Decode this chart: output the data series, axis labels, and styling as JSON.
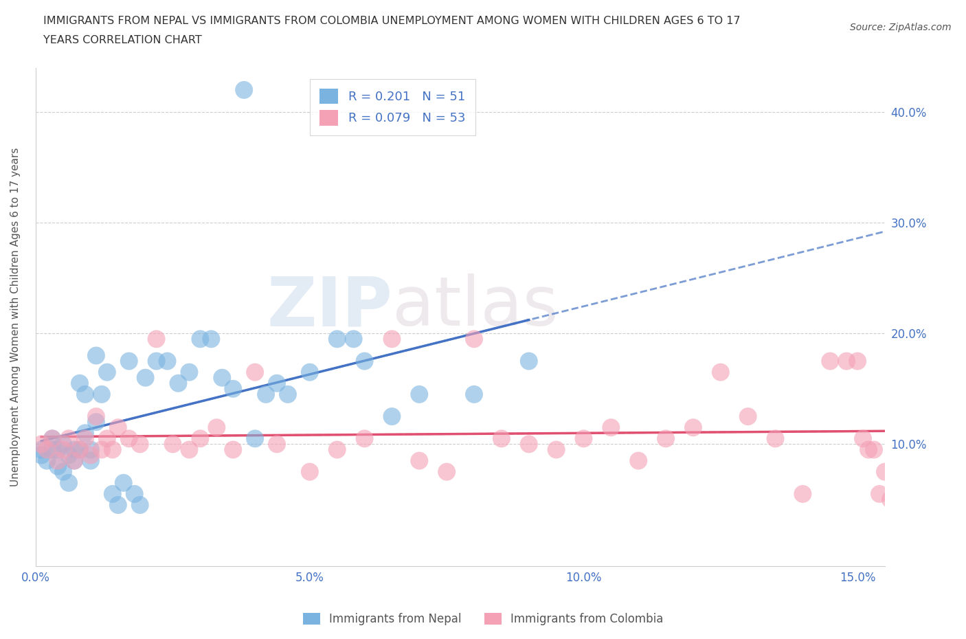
{
  "title_line1": "IMMIGRANTS FROM NEPAL VS IMMIGRANTS FROM COLOMBIA UNEMPLOYMENT AMONG WOMEN WITH CHILDREN AGES 6 TO 17",
  "title_line2": "YEARS CORRELATION CHART",
  "source_text": "Source: ZipAtlas.com",
  "ylabel": "Unemployment Among Women with Children Ages 6 to 17 years",
  "xlim": [
    0.0,
    0.155
  ],
  "ylim": [
    -0.01,
    0.44
  ],
  "xticks": [
    0.0,
    0.05,
    0.1,
    0.15
  ],
  "xticklabels": [
    "0.0%",
    "5.0%",
    "10.0%",
    "15.0%"
  ],
  "yticks": [
    0.1,
    0.2,
    0.3,
    0.4
  ],
  "yticklabels": [
    "10.0%",
    "20.0%",
    "30.0%",
    "40.0%"
  ],
  "nepal_color": "#7ab3e0",
  "colombia_color": "#f4a0b5",
  "nepal_R": 0.201,
  "nepal_N": 51,
  "colombia_R": 0.079,
  "colombia_N": 53,
  "legend_label_nepal": "Immigrants from Nepal",
  "legend_label_colombia": "Immigrants from Colombia",
  "watermark_zip": "ZIP",
  "watermark_atlas": "atlas",
  "nepal_x": [
    0.001,
    0.001,
    0.002,
    0.003,
    0.003,
    0.004,
    0.004,
    0.005,
    0.005,
    0.006,
    0.006,
    0.007,
    0.007,
    0.008,
    0.008,
    0.009,
    0.009,
    0.01,
    0.01,
    0.011,
    0.011,
    0.012,
    0.013,
    0.014,
    0.015,
    0.016,
    0.017,
    0.018,
    0.019,
    0.02,
    0.022,
    0.024,
    0.026,
    0.028,
    0.03,
    0.032,
    0.034,
    0.036,
    0.038,
    0.04,
    0.042,
    0.044,
    0.046,
    0.05,
    0.055,
    0.058,
    0.06,
    0.065,
    0.07,
    0.08,
    0.09
  ],
  "nepal_y": [
    0.09,
    0.095,
    0.085,
    0.095,
    0.105,
    0.08,
    0.095,
    0.075,
    0.1,
    0.065,
    0.09,
    0.085,
    0.095,
    0.095,
    0.155,
    0.11,
    0.145,
    0.085,
    0.095,
    0.12,
    0.18,
    0.145,
    0.165,
    0.055,
    0.045,
    0.065,
    0.175,
    0.055,
    0.045,
    0.16,
    0.175,
    0.175,
    0.155,
    0.165,
    0.195,
    0.195,
    0.16,
    0.15,
    0.42,
    0.105,
    0.145,
    0.155,
    0.145,
    0.165,
    0.195,
    0.195,
    0.175,
    0.125,
    0.145,
    0.145,
    0.175
  ],
  "colombia_x": [
    0.001,
    0.002,
    0.003,
    0.004,
    0.005,
    0.006,
    0.007,
    0.008,
    0.009,
    0.01,
    0.011,
    0.012,
    0.013,
    0.014,
    0.015,
    0.017,
    0.019,
    0.022,
    0.025,
    0.028,
    0.03,
    0.033,
    0.036,
    0.04,
    0.044,
    0.05,
    0.055,
    0.06,
    0.065,
    0.07,
    0.075,
    0.08,
    0.085,
    0.09,
    0.095,
    0.1,
    0.105,
    0.11,
    0.115,
    0.12,
    0.125,
    0.13,
    0.135,
    0.14,
    0.145,
    0.148,
    0.15,
    0.151,
    0.152,
    0.153,
    0.154,
    0.155,
    0.156
  ],
  "colombia_y": [
    0.1,
    0.095,
    0.105,
    0.085,
    0.095,
    0.105,
    0.085,
    0.095,
    0.105,
    0.09,
    0.125,
    0.095,
    0.105,
    0.095,
    0.115,
    0.105,
    0.1,
    0.195,
    0.1,
    0.095,
    0.105,
    0.115,
    0.095,
    0.165,
    0.1,
    0.075,
    0.095,
    0.105,
    0.195,
    0.085,
    0.075,
    0.195,
    0.105,
    0.1,
    0.095,
    0.105,
    0.115,
    0.085,
    0.105,
    0.115,
    0.165,
    0.125,
    0.105,
    0.055,
    0.175,
    0.175,
    0.175,
    0.105,
    0.095,
    0.095,
    0.055,
    0.075,
    0.05
  ],
  "grid_color": "#cccccc",
  "background_color": "#ffffff",
  "axis_color": "#4472c4"
}
